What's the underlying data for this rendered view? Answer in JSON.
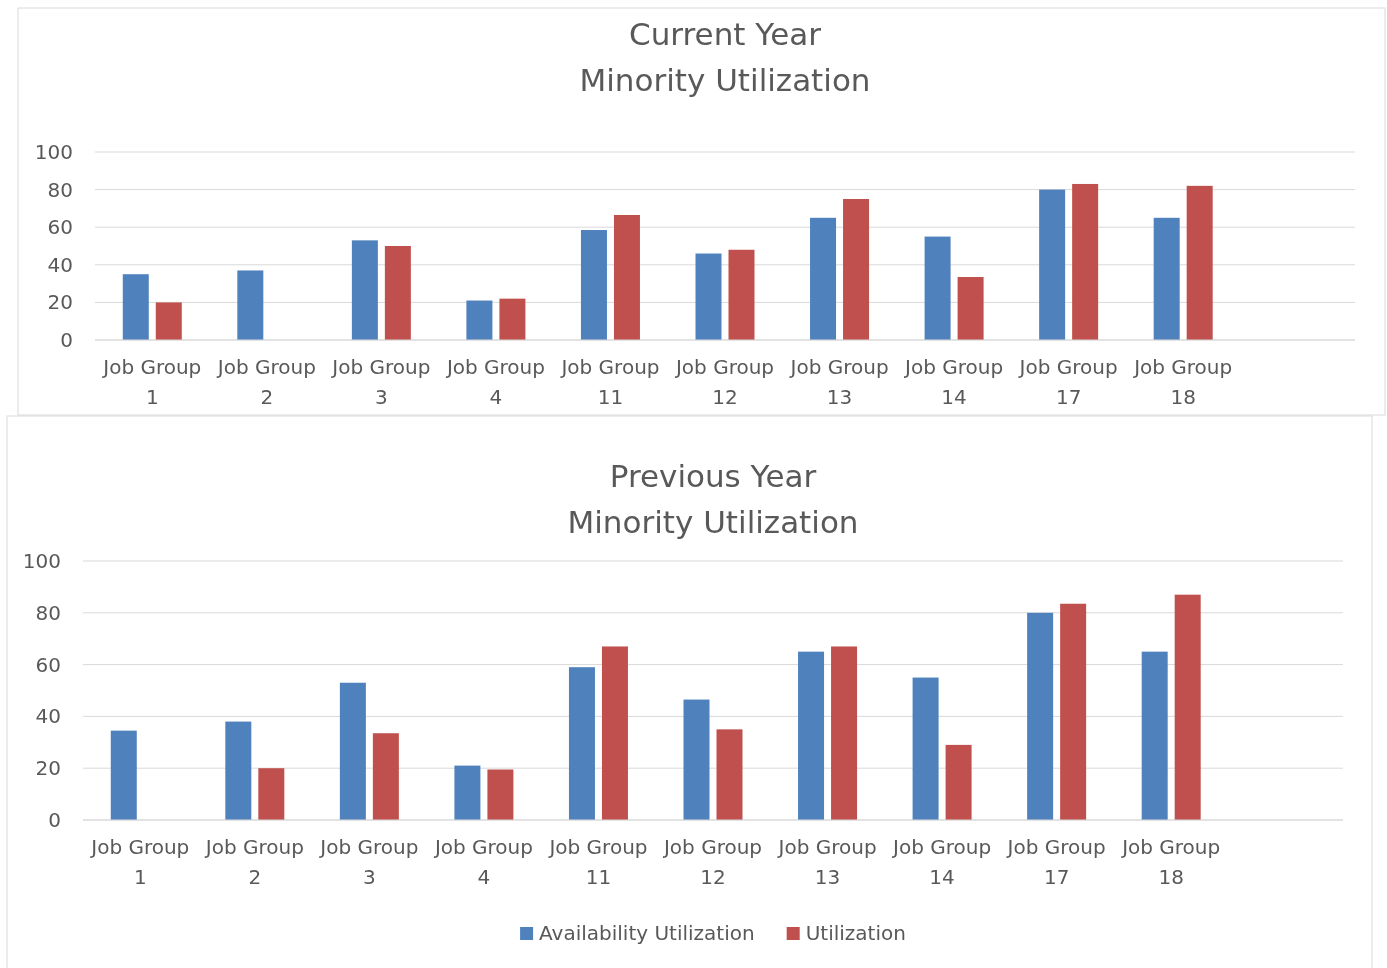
{
  "chart_data": [
    {
      "type": "bar",
      "title": "Current Year\nMinority Utilization",
      "categories": [
        "Job Group 1",
        "Job Group 2",
        "Job Group 3",
        "Job Group 4",
        "Job Group 11",
        "Job Group 12",
        "Job Group 13",
        "Job Group 14",
        "Job Group 17",
        "Job Group 18",
        null
      ],
      "series": [
        {
          "color": "#4f81bd",
          "values": [
            35,
            37,
            53,
            21,
            58.5,
            46,
            65,
            55,
            80,
            65,
            null
          ]
        },
        {
          "color": "#c0504d",
          "values": [
            20,
            null,
            50,
            22,
            66.5,
            48,
            75,
            33.5,
            83,
            82,
            null
          ]
        }
      ],
      "ylim": [
        0,
        100
      ],
      "yticks": [
        0,
        20,
        40,
        60,
        80,
        100
      ],
      "grid": "y",
      "legend": false
    },
    {
      "type": "bar",
      "title": "Previous Year\nMinority Utilization",
      "categories": [
        "Job Group 1",
        "Job Group 2",
        "Job Group 3",
        "Job Group 4",
        "Job Group 11",
        "Job Group 12",
        "Job Group 13",
        "Job Group 14",
        "Job Group 17",
        "Job Group 18",
        null
      ],
      "series": [
        {
          "name": "Availability Utilization",
          "color": "#4f81bd",
          "values": [
            34.5,
            38,
            53,
            21,
            59,
            46.5,
            65,
            55,
            80,
            65,
            null
          ]
        },
        {
          "name": "Utilization",
          "color": "#c0504d",
          "values": [
            null,
            20,
            33.5,
            19.5,
            67,
            35,
            67,
            29,
            83.5,
            87,
            null
          ]
        }
      ],
      "ylim": [
        0,
        100
      ],
      "yticks": [
        0,
        20,
        40,
        60,
        80,
        100
      ],
      "grid": "y",
      "legend": "bottom"
    }
  ]
}
